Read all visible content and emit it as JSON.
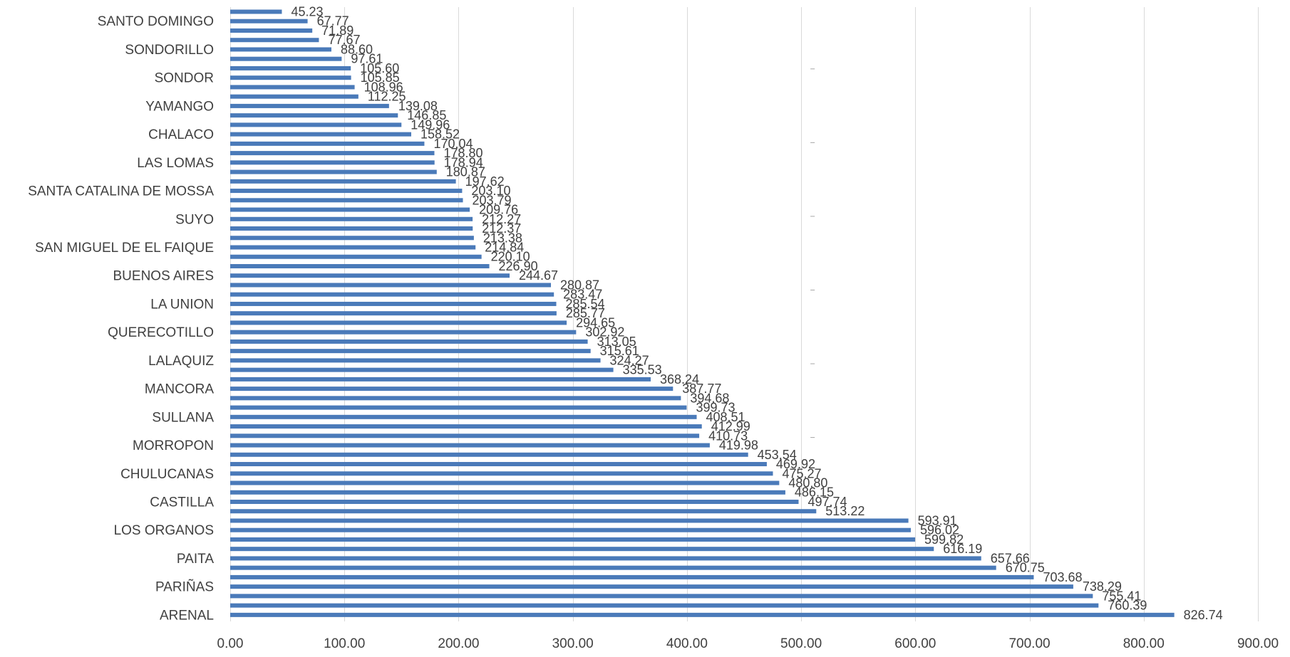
{
  "chart_data": {
    "type": "bar",
    "orientation": "horizontal",
    "title": "",
    "xlabel": "",
    "ylabel": "",
    "xlim": [
      0,
      900
    ],
    "x_ticks": [
      "0.00",
      "100.00",
      "200.00",
      "300.00",
      "400.00",
      "500.00",
      "600.00",
      "700.00",
      "800.00",
      "900.00"
    ],
    "grid": true,
    "legend": "none",
    "bar_color": "#4a7ab9",
    "values": [
      45.23,
      67.77,
      71.89,
      77.67,
      88.6,
      97.61,
      105.6,
      105.85,
      108.96,
      112.25,
      139.08,
      146.85,
      149.96,
      158.52,
      170.04,
      178.8,
      178.94,
      180.87,
      197.62,
      203.1,
      203.79,
      209.76,
      212.27,
      212.37,
      213.38,
      214.84,
      220.1,
      226.9,
      244.67,
      280.87,
      283.47,
      285.54,
      285.77,
      294.65,
      302.92,
      313.05,
      315.61,
      324.27,
      335.53,
      368.24,
      387.77,
      394.68,
      399.73,
      408.51,
      412.99,
      410.73,
      419.98,
      453.54,
      469.92,
      475.27,
      480.8,
      486.15,
      497.74,
      513.22,
      593.91,
      596.02,
      599.82,
      616.19,
      657.66,
      670.75,
      703.68,
      738.29,
      755.41,
      760.39,
      826.74
    ],
    "data_labels": [
      "45.23",
      "67.77",
      "71.89",
      "77.67",
      "88.60",
      "97.61",
      "105.60",
      "105.85",
      "108.96",
      "112.25",
      "139.08",
      "146.85",
      "149.96",
      "158.52",
      "170.04",
      "178.80",
      "178.94",
      "180.87",
      "197.62",
      "203.10",
      "203.79",
      "209.76",
      "212.27",
      "212.37",
      "213.38",
      "214.84",
      "220.10",
      "226.90",
      "244.67",
      "280.87",
      "283.47",
      "285.54",
      "285.77",
      "294.65",
      "302.92",
      "313.05",
      "315.61",
      "324.27",
      "335.53",
      "368.24",
      "387.77",
      "394.68",
      "399.73",
      "408.51",
      "412.99",
      "410.73",
      "419.98",
      "453.54",
      "469.92",
      "475.27",
      "480.80",
      "486.15",
      "497.74",
      "513.22",
      "593.91",
      "596.02",
      "599.82",
      "616.19",
      "657.66",
      "670.75",
      "703.68",
      "738.29",
      "755.41",
      "760.39",
      "826.74"
    ],
    "category_labels": [
      {
        "index": 1,
        "label": "SANTO DOMINGO"
      },
      {
        "index": 4,
        "label": "SONDORILLO"
      },
      {
        "index": 7,
        "label": "SONDOR"
      },
      {
        "index": 10,
        "label": "YAMANGO"
      },
      {
        "index": 13,
        "label": "CHALACO"
      },
      {
        "index": 16,
        "label": "LAS LOMAS"
      },
      {
        "index": 19,
        "label": "SANTA CATALINA DE MOSSA"
      },
      {
        "index": 22,
        "label": "SUYO"
      },
      {
        "index": 25,
        "label": "SAN MIGUEL DE EL FAIQUE"
      },
      {
        "index": 28,
        "label": "BUENOS AIRES"
      },
      {
        "index": 31,
        "label": "LA UNION"
      },
      {
        "index": 34,
        "label": "QUERECOTILLO"
      },
      {
        "index": 37,
        "label": "LALAQUIZ"
      },
      {
        "index": 40,
        "label": "MANCORA"
      },
      {
        "index": 43,
        "label": "SULLANA"
      },
      {
        "index": 46,
        "label": "MORROPON"
      },
      {
        "index": 49,
        "label": "CHULUCANAS"
      },
      {
        "index": 52,
        "label": "CASTILLA"
      },
      {
        "index": 55,
        "label": "LOS ORGANOS"
      },
      {
        "index": 58,
        "label": "PAITA"
      },
      {
        "index": 61,
        "label": "PARIÑAS"
      },
      {
        "index": 64,
        "label": "ARENAL"
      }
    ],
    "dash_marks": [
      0.1,
      0.22,
      0.34,
      0.46,
      0.58,
      0.7
    ]
  }
}
